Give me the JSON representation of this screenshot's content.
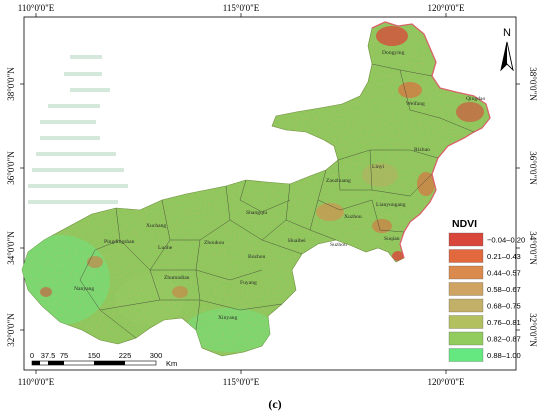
{
  "map": {
    "top_ticks": [
      "110°0'0\"E",
      "115°0'0\"E",
      "120°0'0\"E"
    ],
    "bottom_ticks": [
      "110°0'0\"E",
      "115°0'0\"E",
      "120°0'0\"E"
    ],
    "left_ticks": [
      "38°0'0\"N",
      "36°0'0\"N",
      "34°0'0\"N",
      "32°0'0\"N"
    ],
    "right_ticks": [
      "38°0'0\"N",
      "36°0'0\"N",
      "34°0'0\"N",
      "32°0'0\"N"
    ],
    "north_label": "N",
    "panel_label": "(c)",
    "colors": {
      "frame": "#000000",
      "land_base": "#8cc85a",
      "admin_boundary": "#333333"
    },
    "cities": [
      {
        "name": "Dongying"
      },
      {
        "name": "Weifang"
      },
      {
        "name": "Qingdao"
      },
      {
        "name": "Rizhao"
      },
      {
        "name": "Linyi"
      },
      {
        "name": "Zaozhuang"
      },
      {
        "name": "Lianyungang"
      },
      {
        "name": "Xuzhou"
      },
      {
        "name": "Suqian"
      },
      {
        "name": "Suzhou"
      },
      {
        "name": "Huaibei"
      },
      {
        "name": "Bozhou"
      },
      {
        "name": "Shangqiu"
      },
      {
        "name": "Zhoukou"
      },
      {
        "name": "Fuyang"
      },
      {
        "name": "Xinyang"
      },
      {
        "name": "Zhumadian"
      },
      {
        "name": "Luohe"
      },
      {
        "name": "Xuchang"
      },
      {
        "name": "Pingdingshan"
      },
      {
        "name": "Nanyang"
      }
    ]
  },
  "legend": {
    "title": "NDVI",
    "items": [
      {
        "label": "−0.04–0.20",
        "color": "#d9473b"
      },
      {
        "label": "0.21–0.43",
        "color": "#e2683e"
      },
      {
        "label": "0.44–0.57",
        "color": "#d98a4c"
      },
      {
        "label": "0.58–0.67",
        "color": "#cfa463"
      },
      {
        "label": "0.68–0.75",
        "color": "#c2b068"
      },
      {
        "label": "0.76–0.81",
        "color": "#b2c05f"
      },
      {
        "label": "0.82–0.87",
        "color": "#92cc5e"
      },
      {
        "label": "0.88–1.00",
        "color": "#66e880"
      }
    ]
  },
  "scale_bar": {
    "labels": [
      "0",
      "37.5",
      "75",
      "150",
      "225",
      "300"
    ],
    "unit": "Km"
  }
}
